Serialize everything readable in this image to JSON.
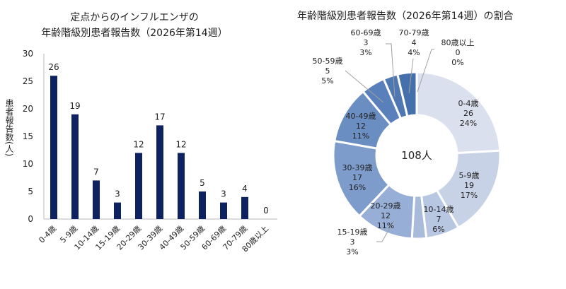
{
  "chart_data": [
    {
      "type": "bar",
      "title_line1": "定点からのインフルエンザの",
      "title_line2": "年齢階級別患者報告数（2026年第14週）",
      "ylabel": "患者報告数(人)",
      "ylim": [
        0,
        30
      ],
      "yticks": [
        0,
        5,
        10,
        15,
        20,
        25,
        30
      ],
      "categories": [
        "0-4歳",
        "5-9歳",
        "10-14歳",
        "15-19歳",
        "20-29歳",
        "30-39歳",
        "40-49歳",
        "50-59歳",
        "60-69歳",
        "70-79歳",
        "80歳以上"
      ],
      "values": [
        26,
        19,
        7,
        3,
        12,
        17,
        12,
        5,
        3,
        4,
        0
      ],
      "bar_color": "#0e2160",
      "grid": false
    },
    {
      "type": "pie",
      "donut": true,
      "title": "年齢階級別患者報告数（2026年第14週）の割合",
      "center_label": "108人",
      "categories": [
        "0-4歳",
        "5-9歳",
        "10-14歳",
        "15-19歳",
        "20-29歳",
        "30-39歳",
        "40-49歳",
        "50-59歳",
        "60-69歳",
        "70-79歳",
        "80歳以上"
      ],
      "values": [
        26,
        19,
        7,
        3,
        12,
        17,
        12,
        5,
        3,
        4,
        0
      ],
      "percents": [
        "24%",
        "17%",
        "6%",
        "3%",
        "11%",
        "16%",
        "11%",
        "5%",
        "3%",
        "4%",
        "0%"
      ],
      "colors": [
        "#dbe0ee",
        "#c8d2e6",
        "#b7c6e1",
        "#a9bbdb",
        "#97aed6",
        "#7d9ccc",
        "#6a8dc2",
        "#5a80bb",
        "#4f77b2",
        "#4670ab",
        "#3f68a2"
      ]
    }
  ]
}
